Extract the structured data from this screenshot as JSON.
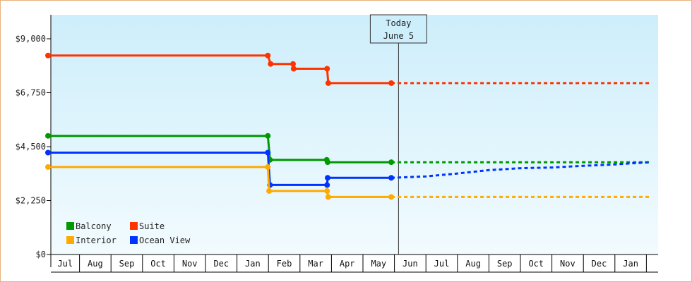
{
  "chart_data": {
    "type": "line",
    "step": true,
    "title": "",
    "xlabel": "",
    "ylabel": "",
    "x_months": [
      "Jul",
      "Aug",
      "Sep",
      "Oct",
      "Nov",
      "Dec",
      "Jan",
      "Feb",
      "Mar",
      "Apr",
      "May",
      "Jun",
      "Jul",
      "Aug",
      "Sep",
      "Oct",
      "Nov",
      "Dec",
      "Jan"
    ],
    "x_range": [
      "Jul 1",
      "Feb 1 (second year)"
    ],
    "ylim": [
      0,
      10000
    ],
    "y_ticks": [
      {
        "value": 0,
        "label": "$0"
      },
      {
        "value": 2250,
        "label": "$2,250"
      },
      {
        "value": 4500,
        "label": "$4,500"
      },
      {
        "value": 6750,
        "label": "$6,750"
      },
      {
        "value": 9000,
        "label": "$9,000"
      }
    ],
    "today": {
      "line1": "Today",
      "line2": "June 5",
      "month_pos": 11.13
    },
    "legend_position": "bottom-left",
    "background_gradient": [
      "#cdeefb",
      "#f2fbfe"
    ],
    "series": [
      {
        "name": "Suite",
        "color": "#ff3300",
        "points": [
          [
            0,
            8300
          ],
          [
            6.98,
            8300
          ],
          [
            7.07,
            7950
          ],
          [
            7.78,
            7950
          ],
          [
            7.8,
            7750
          ],
          [
            8.86,
            7750
          ],
          [
            8.9,
            7150
          ],
          [
            10.9,
            7150
          ]
        ],
        "forecast": [
          [
            10.9,
            7150
          ],
          [
            19.1,
            7150
          ]
        ]
      },
      {
        "name": "Balcony",
        "color": "#009900",
        "points": [
          [
            0,
            4950
          ],
          [
            6.98,
            4950
          ],
          [
            7.05,
            3950
          ],
          [
            8.85,
            3950
          ],
          [
            8.88,
            3850
          ],
          [
            10.9,
            3850
          ]
        ],
        "forecast": [
          [
            10.9,
            3850
          ],
          [
            19.1,
            3850
          ]
        ]
      },
      {
        "name": "Ocean View",
        "color": "#0033ff",
        "points": [
          [
            0,
            4250
          ],
          [
            6.98,
            4250
          ],
          [
            7.05,
            2900
          ],
          [
            8.86,
            2900
          ],
          [
            8.88,
            3200
          ],
          [
            10.9,
            3200
          ]
        ],
        "forecast": [
          [
            10.9,
            3200
          ],
          [
            12.0,
            3260
          ],
          [
            13.0,
            3380
          ],
          [
            14.0,
            3520
          ],
          [
            15.0,
            3600
          ],
          [
            16.0,
            3630
          ],
          [
            17.0,
            3700
          ],
          [
            18.0,
            3760
          ],
          [
            19.1,
            3850
          ]
        ]
      },
      {
        "name": "Interior",
        "color": "#ffaa00",
        "points": [
          [
            0,
            3650
          ],
          [
            6.98,
            3650
          ],
          [
            7.02,
            2650
          ],
          [
            8.86,
            2650
          ],
          [
            8.9,
            2400
          ],
          [
            10.9,
            2400
          ]
        ],
        "forecast": [
          [
            10.9,
            2400
          ],
          [
            19.1,
            2400
          ]
        ]
      }
    ],
    "legend": [
      {
        "name": "Balcony",
        "color": "#009900"
      },
      {
        "name": "Suite",
        "color": "#ff3300"
      },
      {
        "name": "Interior",
        "color": "#ffaa00"
      },
      {
        "name": "Ocean View",
        "color": "#0033ff"
      }
    ]
  }
}
